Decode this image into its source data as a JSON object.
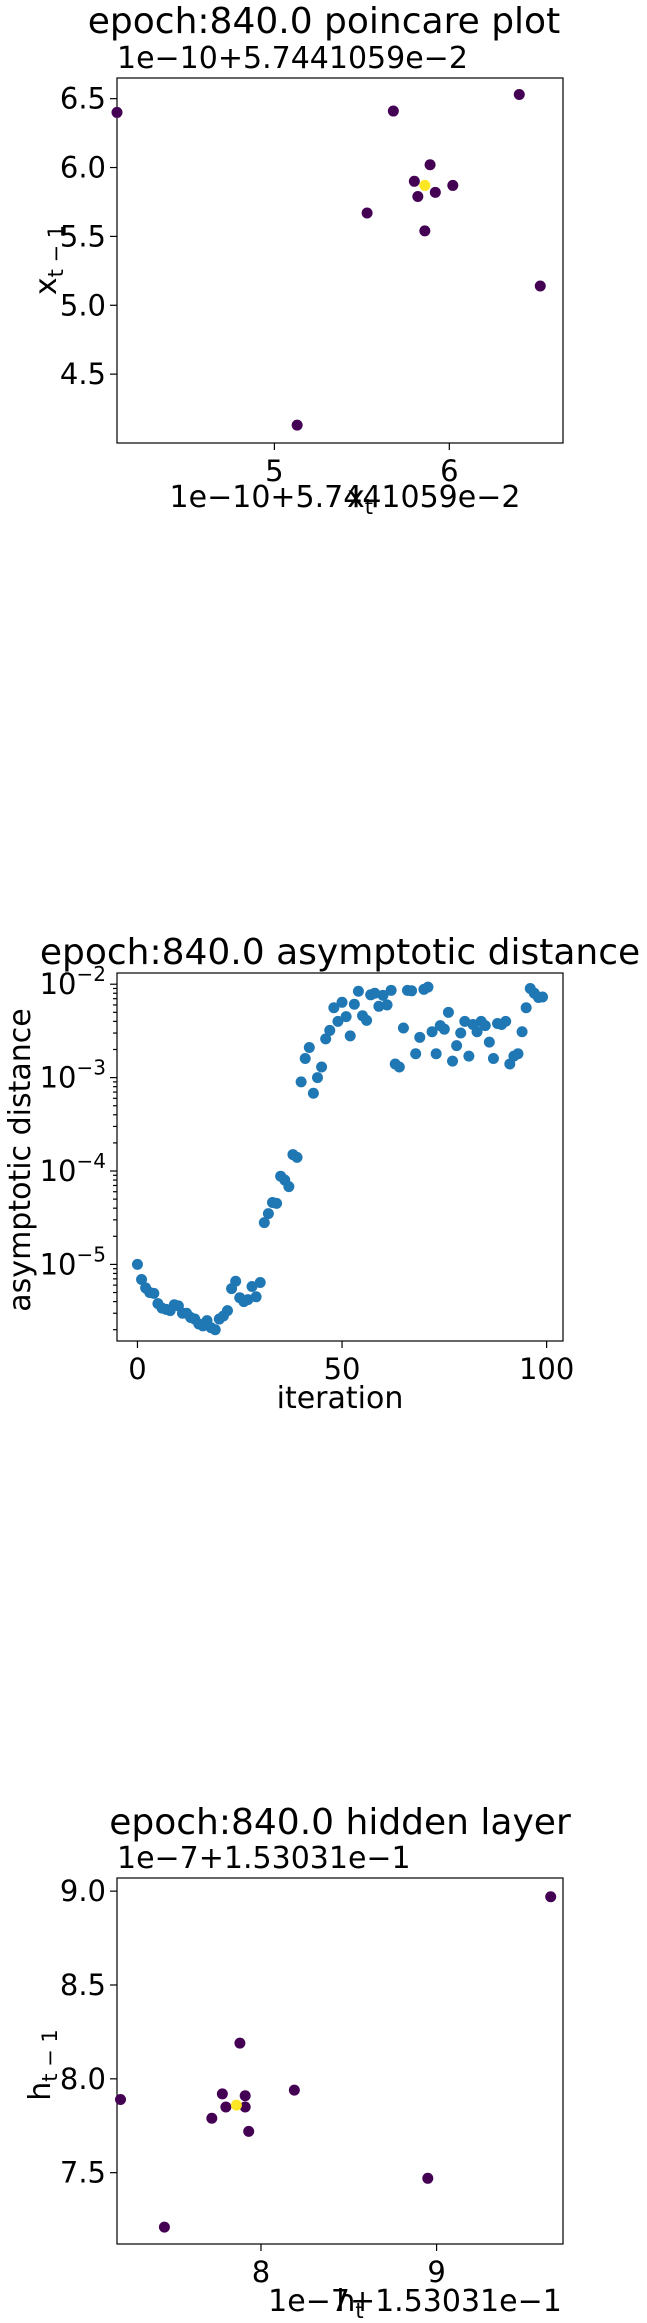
{
  "chart_data": [
    {
      "type": "scatter",
      "title": "epoch:840.0 poincare plot",
      "xlabel": "x_t",
      "ylabel": "x_{t-1}",
      "x_offset_text": "1e−10+5.7441059e−2",
      "y_offset_text": "1e−10+5.7441059e−2",
      "xlim": [
        4.1,
        6.65
      ],
      "ylim": [
        4.0,
        6.65
      ],
      "xticks": [
        5,
        6
      ],
      "xtick_labels": [
        "5",
        "6"
      ],
      "yticks": [
        4.5,
        5.0,
        5.5,
        6.0,
        6.5
      ],
      "ytick_labels": [
        "4.5",
        "5.0",
        "5.5",
        "6.0",
        "6.5"
      ],
      "colormap": [
        "#440154",
        "#fde725"
      ],
      "points": [
        {
          "x": 4.1,
          "y": 6.4,
          "c": 0
        },
        {
          "x": 5.68,
          "y": 6.41,
          "c": 0
        },
        {
          "x": 6.4,
          "y": 6.53,
          "c": 0
        },
        {
          "x": 5.53,
          "y": 5.67,
          "c": 0
        },
        {
          "x": 5.86,
          "y": 5.54,
          "c": 0
        },
        {
          "x": 6.52,
          "y": 5.14,
          "c": 0
        },
        {
          "x": 5.13,
          "y": 4.13,
          "c": 0
        },
        {
          "x": 5.89,
          "y": 6.02,
          "c": 0
        },
        {
          "x": 6.02,
          "y": 5.87,
          "c": 0
        },
        {
          "x": 5.8,
          "y": 5.9,
          "c": 0
        },
        {
          "x": 5.82,
          "y": 5.79,
          "c": 0
        },
        {
          "x": 5.92,
          "y": 5.82,
          "c": 0
        },
        {
          "x": 5.86,
          "y": 5.87,
          "c": 1
        }
      ]
    },
    {
      "type": "scatter",
      "title": "epoch:840.0 asymptotic distance",
      "xlabel": "iteration",
      "ylabel": "asymptotic distance",
      "yscale": "log",
      "xlim": [
        -5,
        104
      ],
      "ylim_log10": [
        -5.82,
        -1.88
      ],
      "xticks": [
        0,
        50,
        100
      ],
      "xtick_labels": [
        "0",
        "50",
        "100"
      ],
      "yticks_log10": [
        -5,
        -4,
        -3,
        -2
      ],
      "ytick_labels": [
        "10−5",
        "10−4",
        "10−3",
        "10−2"
      ],
      "color": "#1f77b4",
      "x": [
        0,
        1,
        2,
        3,
        4,
        5,
        6,
        7,
        8,
        9,
        10,
        11,
        12,
        13,
        14,
        15,
        16,
        17,
        18,
        19,
        20,
        21,
        22,
        23,
        24,
        25,
        26,
        27,
        28,
        29,
        30,
        31,
        32,
        33,
        34,
        35,
        36,
        37,
        38,
        39,
        40,
        41,
        42,
        43,
        44,
        45,
        46,
        47,
        48,
        49,
        50,
        51,
        52,
        53,
        54,
        55,
        56,
        57,
        58,
        59,
        60,
        61,
        62,
        63,
        64,
        65,
        66,
        67,
        68,
        69,
        70,
        71,
        72,
        73,
        74,
        75,
        76,
        77,
        78,
        79,
        80,
        81,
        82,
        83,
        84,
        85,
        86,
        87,
        88,
        89,
        90,
        91,
        92,
        93,
        94,
        95,
        96,
        97,
        98,
        99
      ],
      "y": [
        1e-05,
        6.9e-06,
        5.6e-06,
        5e-06,
        4.9e-06,
        3.8e-06,
        3.4e-06,
        3.3e-06,
        3.2e-06,
        3.7e-06,
        3.6e-06,
        3e-06,
        3e-06,
        2.7e-06,
        2.6e-06,
        2.3e-06,
        2.2e-06,
        2.5e-06,
        2.1e-06,
        2e-06,
        2.6e-06,
        2.8e-06,
        3.2e-06,
        5.5e-06,
        6.6e-06,
        4.4e-06,
        4e-06,
        4.2e-06,
        5.8e-06,
        4.5e-06,
        6.4e-06,
        2.8e-05,
        3.5e-05,
        4.6e-05,
        4.5e-05,
        8.8e-05,
        8e-05,
        6.8e-05,
        0.00015,
        0.00014,
        0.0009,
        0.0016,
        0.0021,
        0.00068,
        0.001,
        0.0013,
        0.0026,
        0.0032,
        0.0056,
        0.004,
        0.0064,
        0.0045,
        0.0028,
        0.0061,
        0.0084,
        0.0046,
        0.0041,
        0.0077,
        0.008,
        0.0058,
        0.0076,
        0.006,
        0.0086,
        0.0014,
        0.0013,
        0.0034,
        0.0086,
        0.0085,
        0.0018,
        0.0027,
        0.0088,
        0.0093,
        0.0031,
        0.0018,
        0.0036,
        0.0033,
        0.005,
        0.0015,
        0.0022,
        0.003,
        0.004,
        0.0017,
        0.0037,
        0.0031,
        0.004,
        0.0036,
        0.0024,
        0.0016,
        0.0038,
        0.0037,
        0.004,
        0.0014,
        0.0017,
        0.0018,
        0.0031,
        0.0056,
        0.009,
        0.008,
        0.0072,
        0.0073
      ]
    },
    {
      "type": "scatter",
      "title": "epoch:840.0 hidden layer",
      "xlabel": "h_t",
      "ylabel": "h_{t-1}",
      "x_offset_text": "1e−7+1.53031e−1",
      "y_offset_text": "1e−7+1.53031e−1",
      "xlim": [
        7.18,
        9.72
      ],
      "ylim": [
        7.12,
        9.07
      ],
      "xticks": [
        8,
        9
      ],
      "xtick_labels": [
        "8",
        "9"
      ],
      "yticks": [
        7.5,
        8.0,
        8.5,
        9.0
      ],
      "ytick_labels": [
        "7.5",
        "8.0",
        "8.5",
        "9.0"
      ],
      "colormap": [
        "#440154",
        "#fde725"
      ],
      "points": [
        {
          "x": 9.65,
          "y": 8.97,
          "c": 0
        },
        {
          "x": 7.2,
          "y": 7.89,
          "c": 0
        },
        {
          "x": 7.45,
          "y": 7.21,
          "c": 0
        },
        {
          "x": 8.95,
          "y": 7.47,
          "c": 0
        },
        {
          "x": 8.19,
          "y": 7.94,
          "c": 0
        },
        {
          "x": 7.88,
          "y": 8.19,
          "c": 0
        },
        {
          "x": 7.93,
          "y": 7.72,
          "c": 0
        },
        {
          "x": 7.72,
          "y": 7.79,
          "c": 0
        },
        {
          "x": 7.78,
          "y": 7.92,
          "c": 0
        },
        {
          "x": 7.91,
          "y": 7.91,
          "c": 0
        },
        {
          "x": 7.8,
          "y": 7.85,
          "c": 0
        },
        {
          "x": 7.91,
          "y": 7.85,
          "c": 0
        },
        {
          "x": 7.86,
          "y": 7.86,
          "c": 1
        }
      ]
    }
  ]
}
